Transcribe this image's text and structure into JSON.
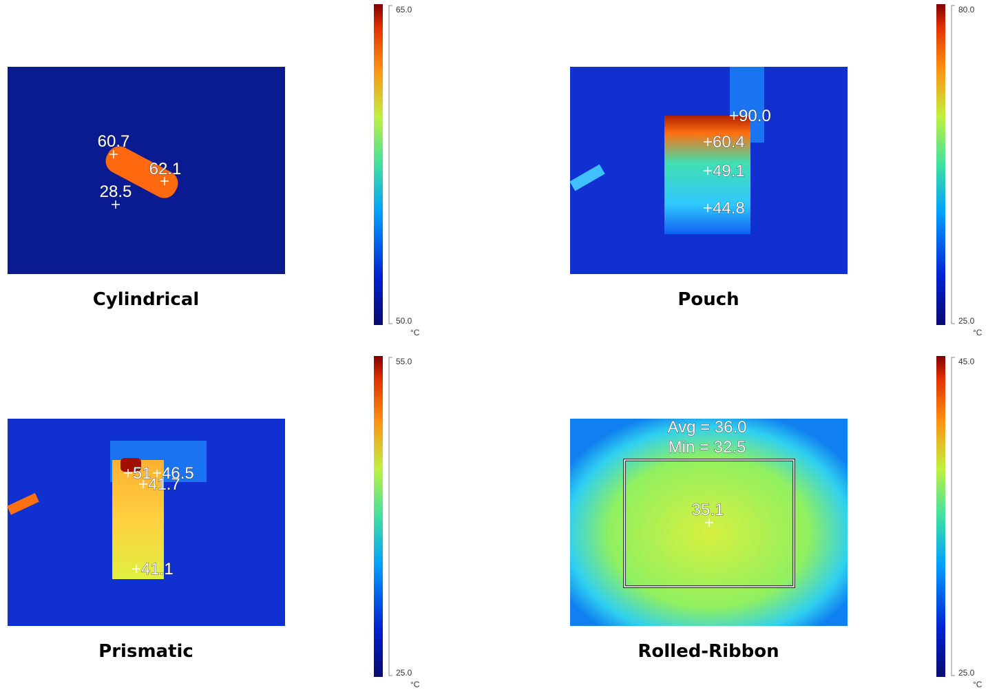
{
  "panels": [
    {
      "label": "Cylindrical",
      "readings": [
        "60.7",
        "62.1",
        "28.5"
      ],
      "scale": {
        "max": "65.0",
        "min": "50.0",
        "unit": "°C"
      }
    },
    {
      "label": "Pouch",
      "readings": [
        "90.0",
        "60.4",
        "49.1",
        "44.8"
      ],
      "scale": {
        "max": "80.0",
        "min": "25.0",
        "unit": "°C"
      }
    },
    {
      "label": "Prismatic",
      "readings": [
        "51",
        "46.5",
        "41.7",
        "41.1"
      ],
      "scale": {
        "max": "55.0",
        "min": "25.0",
        "unit": "°C"
      }
    },
    {
      "label": "Rolled-Ribbon",
      "readings": [
        "Avg = 36.0",
        "Min = 32.5",
        "35.1"
      ],
      "scale": {
        "max": "45.0",
        "min": "25.0",
        "unit": "°C"
      }
    }
  ]
}
